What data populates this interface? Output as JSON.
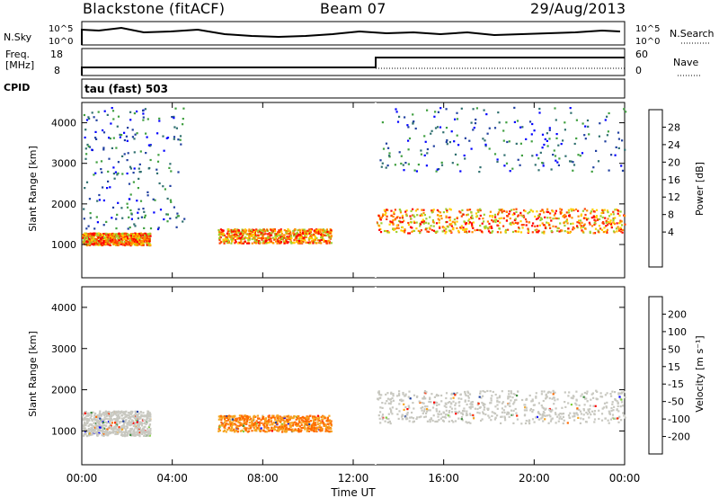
{
  "header": {
    "title": "Blackstone (fitACF)",
    "beam": "Beam 07",
    "date": "29/Aug/2013"
  },
  "status_panel": {
    "left_top_label": "N.Sky",
    "left_top_ticks": [
      "10^5",
      "10^0"
    ],
    "right_top_label": "N.Search",
    "right_top_ticks": [
      "10^5",
      "10^0"
    ],
    "freq_label_1": "Freq.",
    "freq_label_2": "[MHz]",
    "freq_ticks": [
      "18",
      "8"
    ],
    "nave_label": "Nave",
    "nave_ticks": [
      "60",
      "0"
    ],
    "cpid_label": "CPID",
    "cpid_value": "tau (fast) 503"
  },
  "chart_data": [
    {
      "type": "heatmap",
      "name": "power",
      "ylabel": "Slant Range [km]",
      "ylim": [
        180,
        4500
      ],
      "yticks": [
        1000,
        2000,
        3000,
        4000
      ],
      "xlim": [
        "00:00",
        "24:00"
      ],
      "colorbar": {
        "label": "Power [dB]",
        "ticks": [
          "28",
          "24",
          "20",
          "16",
          "12",
          "8",
          "4"
        ],
        "colors": [
          "#0000ff",
          "#1f3f9f",
          "#2f6f6f",
          "#3f9f3f",
          "#9fcf2f",
          "#ffcf00",
          "#ff8f00",
          "#ff3f00",
          "#ff0000"
        ]
      },
      "features": [
        {
          "t": [
            0.0,
            3.0
          ],
          "r": [
            1000,
            1300
          ],
          "level": "high"
        },
        {
          "t": [
            6.0,
            11.0
          ],
          "r": [
            1050,
            1400
          ],
          "level": "high"
        },
        {
          "t": [
            13.0,
            24.0
          ],
          "r": [
            1300,
            1900
          ],
          "level": "high"
        },
        {
          "t": [
            0.0,
            4.5
          ],
          "r": [
            1400,
            4400
          ],
          "level": "low"
        },
        {
          "t": [
            13.0,
            24.0
          ],
          "r": [
            2800,
            4400
          ],
          "level": "low"
        }
      ]
    },
    {
      "type": "heatmap",
      "name": "velocity",
      "ylabel": "Slant Range [km]",
      "ylim": [
        180,
        4500
      ],
      "yticks": [
        1000,
        2000,
        3000,
        4000
      ],
      "xlim": [
        "00:00",
        "24:00"
      ],
      "xlabel": "Time UT",
      "xticks": [
        "00:00",
        "04:00",
        "08:00",
        "12:00",
        "16:00",
        "20:00",
        "00:00"
      ],
      "colorbar": {
        "label": "Velocity [m s⁻¹]",
        "ticks": [
          "200",
          "100",
          "50",
          "15",
          "-15",
          "-50",
          "-100",
          "-200"
        ],
        "colors": [
          "#0000ff",
          "#1f3f9f",
          "#3f8f3f",
          "#7fcf3f",
          "#c8c8c0",
          "#f5a623",
          "#ff6a00",
          "#ff2a00",
          "#ff0000"
        ]
      },
      "features": [
        {
          "t": [
            0.0,
            3.0
          ],
          "r": [
            900,
            1500
          ],
          "level": "ground"
        },
        {
          "t": [
            6.0,
            11.0
          ],
          "r": [
            1000,
            1400
          ],
          "level": "negative"
        },
        {
          "t": [
            13.0,
            24.0
          ],
          "r": [
            1200,
            2000
          ],
          "level": "ground"
        }
      ]
    }
  ]
}
